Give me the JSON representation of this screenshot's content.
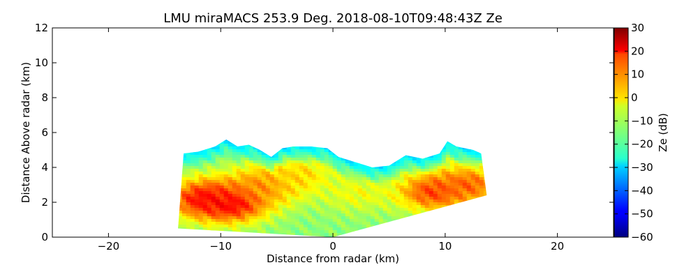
{
  "chart_data": {
    "type": "heatmap",
    "title": "LMU miraMACS 253.9 Deg. 2018-08-10T09:48:43Z  Ze",
    "xlabel": "Distance from radar (km)",
    "ylabel": "Distance Above radar  (km)",
    "xlim": [
      -25,
      25
    ],
    "ylim": [
      0,
      12
    ],
    "xticks": [
      "−20",
      "−10",
      "0",
      "10",
      "20"
    ],
    "xtick_values": [
      -20,
      -10,
      0,
      10,
      20
    ],
    "yticks": [
      "0",
      "2",
      "4",
      "6",
      "8",
      "10",
      "12"
    ],
    "ytick_values": [
      0,
      2,
      4,
      6,
      8,
      10,
      12
    ],
    "colorbar": {
      "label": "Ze (dB)",
      "range": [
        -60,
        30
      ],
      "ticks": [
        "30",
        "20",
        "10",
        "0",
        "−10",
        "−20",
        "−30",
        "−40",
        "−50",
        "−60"
      ],
      "tick_values": [
        30,
        20,
        10,
        0,
        -10,
        -20,
        -30,
        -40,
        -50,
        -60
      ],
      "colormap": "jet"
    },
    "echo_region": {
      "scan_edge_left": [
        [
          -13.8,
          0.5
        ],
        [
          -13.3,
          4.8
        ]
      ],
      "scan_edge_right": [
        [
          13.7,
          2.4
        ],
        [
          13.2,
          4.8
        ]
      ],
      "base_left": [
        -13.8,
        0.5
      ],
      "base_center": [
        0,
        0
      ],
      "base_right": [
        13.7,
        2.4
      ],
      "cloud_top": [
        [
          -13.3,
          4.8
        ],
        [
          -12,
          4.9
        ],
        [
          -10.5,
          5.2
        ],
        [
          -9.5,
          5.6
        ],
        [
          -8.5,
          5.2
        ],
        [
          -7.5,
          5.3
        ],
        [
          -6.5,
          5.0
        ],
        [
          -5.5,
          4.6
        ],
        [
          -4.5,
          5.1
        ],
        [
          -3.5,
          5.2
        ],
        [
          -2,
          5.2
        ],
        [
          -0.5,
          5.1
        ],
        [
          0.5,
          4.6
        ],
        [
          2,
          4.3
        ],
        [
          3.5,
          4.0
        ],
        [
          5,
          4.1
        ],
        [
          6.5,
          4.7
        ],
        [
          8,
          4.5
        ],
        [
          9.5,
          4.8
        ],
        [
          10.2,
          5.5
        ],
        [
          11,
          5.2
        ],
        [
          12.5,
          5.0
        ],
        [
          13.2,
          4.8
        ]
      ],
      "cores": [
        {
          "x": -9,
          "y": 2.0,
          "ze": 22
        },
        {
          "x": -11.5,
          "y": 2.2,
          "ze": 18
        },
        {
          "x": -6,
          "y": 3.0,
          "ze": 8
        },
        {
          "x": -3,
          "y": 3.5,
          "ze": 0
        },
        {
          "x": 2,
          "y": 2.5,
          "ze": -5
        },
        {
          "x": 9,
          "y": 2.6,
          "ze": 14
        },
        {
          "x": 12,
          "y": 3.0,
          "ze": 10
        }
      ],
      "background_ze": -14,
      "top_ze": -28
    }
  }
}
